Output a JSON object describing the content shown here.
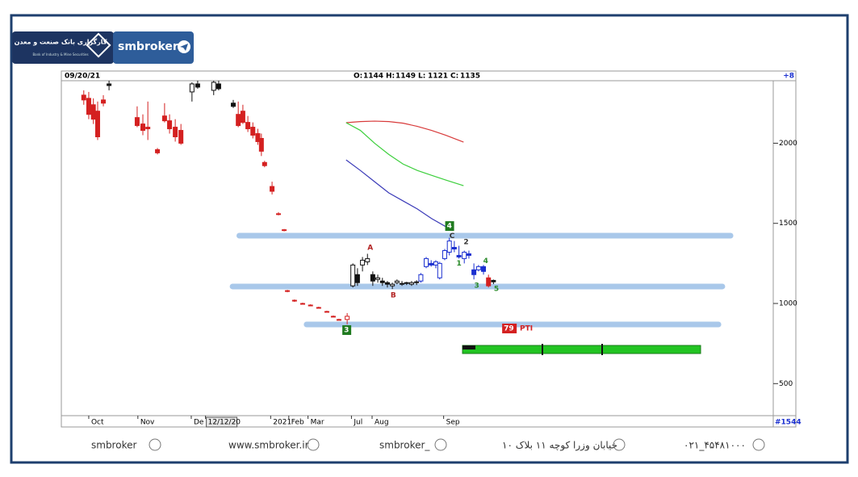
{
  "chart_data": {
    "type": "candlestick",
    "brand": {
      "logo_text": "کارگزاری بانک صنعت و معدن",
      "logo_sub": "Bank of Industry & Mine Securities",
      "name": "smbroker"
    },
    "header": {
      "date": "09/20/21",
      "ohlc": [
        {
          "label": "O:",
          "value": 1144
        },
        {
          "label": "H:",
          "value": 1149
        },
        {
          "label": "L:",
          "value": 1121
        },
        {
          "label": "C:",
          "value": 1135
        }
      ],
      "change": "+8",
      "bar_count": "#1544"
    },
    "xlim": [
      0,
      200
    ],
    "xticks": [
      {
        "value": 7.7,
        "label": "Oct"
      },
      {
        "value": 21.5,
        "label": "Nov"
      },
      {
        "value": 36.5,
        "label": "De"
      },
      {
        "value": 40.5,
        "label": "12/12/20"
      },
      {
        "value": 58.8,
        "label": "2021"
      },
      {
        "value": 63.9,
        "label": "Feb"
      },
      {
        "value": 69.3,
        "label": "Mar"
      },
      {
        "value": 81.5,
        "label": "Jul"
      },
      {
        "value": 87.3,
        "label": "Aug"
      },
      {
        "value": 107.4,
        "label": "Sep"
      }
    ],
    "ylim": [
      300,
      2390
    ],
    "yticks": [
      500,
      1000,
      1500,
      2000
    ],
    "candle_sets": [
      {
        "color": "#d42020",
        "x": [
          6.3,
          7.7,
          9,
          10.2,
          11.8,
          21.3,
          22.9,
          24.3,
          27,
          29,
          30.4,
          32,
          33.6,
          49.7,
          51,
          52.4,
          53.8,
          55.2,
          56.2,
          57.1,
          59.2,
          61,
          62.6,
          63.5,
          65.5,
          67.8,
          70,
          72.3,
          74.6,
          76.4,
          78,
          80.3,
          120
        ],
        "open": [
          2300,
          2280,
          2240,
          2200,
          2270,
          2160,
          2120,
          2100,
          1960,
          2170,
          2140,
          2100,
          2080,
          2180,
          2200,
          2130,
          2100,
          2060,
          2030,
          1880,
          1730,
          1560,
          1460,
          1080,
          1020,
          1000,
          990,
          975,
          950,
          920,
          900,
          900,
          1160
        ],
        "high": [
          2330,
          2320,
          2280,
          2260,
          2300,
          2230,
          2180,
          2260,
          1970,
          2250,
          2180,
          2150,
          2120,
          2260,
          2240,
          2170,
          2130,
          2090,
          2060,
          1890,
          1760,
          1570,
          1465,
          1085,
          1025,
          1005,
          995,
          980,
          955,
          925,
          905,
          940,
          1180
        ],
        "low": [
          2240,
          2150,
          2120,
          2020,
          2230,
          2100,
          2050,
          2020,
          1930,
          2130,
          2060,
          2010,
          1990,
          2100,
          2120,
          2070,
          2030,
          1990,
          1920,
          1850,
          1680,
          1550,
          1450,
          1070,
          1010,
          995,
          985,
          970,
          945,
          915,
          895,
          870,
          1100
        ],
        "close": [
          2270,
          2180,
          2150,
          2040,
          2250,
          2110,
          2080,
          2090,
          1940,
          2140,
          2090,
          2040,
          2000,
          2110,
          2130,
          2090,
          2050,
          2010,
          1950,
          1860,
          1700,
          1555,
          1455,
          1075,
          1015,
          998,
          988,
          972,
          948,
          918,
          898,
          920,
          1110
        ]
      },
      {
        "color": "#111111",
        "x": [
          13.4,
          36.7,
          38.3,
          42.8,
          44.2,
          48.3,
          81.9,
          83.2,
          84.6,
          86,
          87.5,
          88.9,
          90.2,
          91.6,
          93,
          94.3,
          95.7,
          97,
          98.4,
          99.8,
          121.4
        ],
        "open": [
          2370,
          2320,
          2370,
          2330,
          2370,
          2250,
          1110,
          1180,
          1240,
          1260,
          1180,
          1150,
          1140,
          1130,
          1110,
          1130,
          1120,
          1125,
          1120,
          1130,
          1144
        ],
        "high": [
          2390,
          2380,
          2390,
          2390,
          2390,
          2270,
          1250,
          1220,
          1290,
          1310,
          1200,
          1180,
          1160,
          1140,
          1130,
          1150,
          1140,
          1135,
          1140,
          1145,
          1149
        ],
        "low": [
          2330,
          2260,
          2340,
          2300,
          2330,
          2220,
          1100,
          1110,
          1200,
          1240,
          1110,
          1130,
          1110,
          1100,
          1090,
          1120,
          1110,
          1115,
          1110,
          1115,
          1121
        ],
        "close": [
          2360,
          2370,
          2350,
          2380,
          2340,
          2230,
          1240,
          1130,
          1270,
          1280,
          1140,
          1160,
          1130,
          1120,
          1120,
          1140,
          1125,
          1130,
          1130,
          1135,
          1135
        ]
      },
      {
        "color": "#1a2fd0",
        "x": [
          101,
          102.5,
          103.9,
          105.2,
          106.3,
          107.7,
          109,
          110.4,
          111.7,
          113.2,
          114.5,
          115.9,
          117.2,
          118.6
        ],
        "open": [
          1140,
          1230,
          1250,
          1240,
          1160,
          1280,
          1320,
          1350,
          1300,
          1280,
          1310,
          1210,
          1210,
          1230
        ],
        "high": [
          1190,
          1290,
          1270,
          1270,
          1260,
          1340,
          1410,
          1390,
          1360,
          1330,
          1330,
          1250,
          1240,
          1240
        ],
        "low": [
          1130,
          1220,
          1230,
          1220,
          1150,
          1270,
          1300,
          1320,
          1280,
          1250,
          1280,
          1150,
          1200,
          1180
        ],
        "close": [
          1180,
          1280,
          1240,
          1260,
          1250,
          1330,
          1390,
          1340,
          1290,
          1320,
          1300,
          1180,
          1230,
          1200
        ]
      }
    ],
    "lines": [
      {
        "color": "#d83a3a",
        "x": [
          80,
          84,
          88,
          92,
          96,
          100,
          104,
          108,
          113
        ],
        "values": [
          2128,
          2135,
          2138,
          2135,
          2125,
          2105,
          2080,
          2050,
          2007
        ]
      },
      {
        "color": "#3ccf3c",
        "x": [
          80,
          84,
          88,
          92,
          96,
          100,
          104,
          108,
          113
        ],
        "values": [
          2128,
          2080,
          2000,
          1930,
          1870,
          1830,
          1800,
          1770,
          1735
        ]
      },
      {
        "color": "#3a3ab8",
        "x": [
          80,
          84,
          88,
          92,
          96,
          100,
          104,
          109.7
        ],
        "values": [
          1896,
          1830,
          1760,
          1690,
          1640,
          1590,
          1530,
          1458
        ]
      }
    ],
    "levels": [
      {
        "value": 1423,
        "from": 50,
        "to": 188
      },
      {
        "value": 1106,
        "from": 48.1,
        "to": 185.7
      },
      {
        "value": 869,
        "from": 68.9,
        "to": 184.6
      }
    ],
    "level_color": "#a9c8ea",
    "annotations": [
      {
        "text": "A",
        "x": 86,
        "y": 1347,
        "color": "#b22222"
      },
      {
        "text": "B",
        "x": 92.5,
        "y": 1050,
        "color": "#b22222"
      },
      {
        "text": "C",
        "x": 109,
        "y": 1420,
        "color": "#333333"
      },
      {
        "text": "2",
        "x": 113,
        "y": 1383,
        "color": "#333333"
      },
      {
        "text": "1",
        "x": 111,
        "y": 1250,
        "color": "#2a8a2a"
      },
      {
        "text": "4",
        "x": 118.5,
        "y": 1265,
        "color": "#2a8a2a"
      },
      {
        "text": "3",
        "x": 116,
        "y": 1110,
        "color": "#2a8a2a"
      },
      {
        "text": "5",
        "x": 121.5,
        "y": 1090,
        "color": "#2a8a2a"
      },
      {
        "text": "4",
        "x": 109.2,
        "y": 1483,
        "color": "#ffffff",
        "box": "#1f7a1f"
      },
      {
        "text": "3",
        "x": 80.3,
        "y": 834,
        "color": "#ffffff",
        "box": "#1f7a1f"
      },
      {
        "text": "79",
        "x": 125.2,
        "y": 844,
        "color": "#ffffff",
        "box": "#d42020"
      },
      {
        "text": "PTI",
        "x": 128.8,
        "y": 844,
        "color": "#d42020"
      }
    ],
    "footer": [
      "smbroker",
      "www.smbroker.ir",
      "smbroker_",
      "خیابان وزرا کوچه ۱۱ بلاک ۱۰",
      "۰۲۱_۴۵۴۸۱۰۰۰"
    ]
  }
}
